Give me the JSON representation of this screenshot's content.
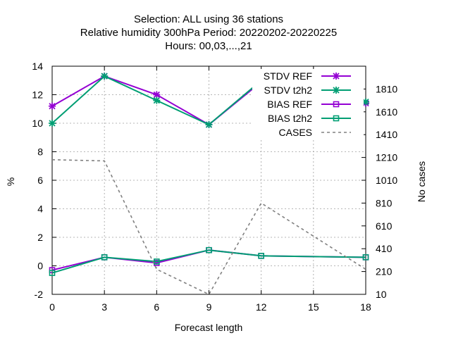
{
  "chart_data": {
    "type": "line",
    "title_lines": [
      "Selection: ALL using    36 stations",
      "Relative humidity 300hPa   Period: 20220202-20220225",
      "Hours:  00,03,...,21"
    ],
    "xlabel": "Forecast length",
    "ylabel": "%",
    "y2label": "No cases",
    "x": [
      0,
      3,
      6,
      9,
      12,
      15,
      18
    ],
    "xlim": [
      0,
      18
    ],
    "ylim": [
      -2,
      14
    ],
    "y2lim": [
      10,
      2010
    ],
    "xticks": [
      "0",
      "3",
      "6",
      "9",
      "12",
      "15",
      "18"
    ],
    "yticks": [
      "-2",
      "0",
      "2",
      "4",
      "6",
      "8",
      "10",
      "12",
      "14"
    ],
    "y2ticks": [
      "10",
      "210",
      "410",
      "610",
      "810",
      "1010",
      "1210",
      "1410",
      "1610",
      "1810"
    ],
    "grid": true,
    "legend_position": "top-right",
    "series": [
      {
        "name": "STDV REF",
        "axis": "y",
        "color": "#9400d3",
        "marker": "x",
        "dash": false,
        "x": [
          0,
          3,
          6,
          9,
          12,
          18
        ],
        "values": [
          11.2,
          13.3,
          12.0,
          9.9,
          12.9,
          11.4
        ]
      },
      {
        "name": "STDV t2h2",
        "axis": "y",
        "color": "#009e73",
        "marker": "x",
        "dash": false,
        "x": [
          0,
          3,
          6,
          9,
          12,
          18
        ],
        "values": [
          10.0,
          13.3,
          11.6,
          9.9,
          13.0,
          11.5
        ]
      },
      {
        "name": "BIAS REF",
        "axis": "y",
        "color": "#9400d3",
        "marker": "square",
        "dash": false,
        "x": [
          0,
          3,
          6,
          9,
          12,
          18
        ],
        "values": [
          -0.3,
          0.6,
          0.2,
          1.1,
          0.7,
          0.6
        ]
      },
      {
        "name": "BIAS t2h2",
        "axis": "y",
        "color": "#009e73",
        "marker": "square",
        "dash": false,
        "x": [
          0,
          3,
          6,
          9,
          12,
          18
        ],
        "values": [
          -0.5,
          0.6,
          0.3,
          1.1,
          0.7,
          0.6
        ]
      },
      {
        "name": "CASES",
        "axis": "y2",
        "color": "#808080",
        "marker": "none",
        "dash": true,
        "x": [
          0,
          3,
          6,
          9,
          12,
          18
        ],
        "values": [
          1190,
          1180,
          230,
          10,
          810,
          230
        ]
      }
    ]
  }
}
